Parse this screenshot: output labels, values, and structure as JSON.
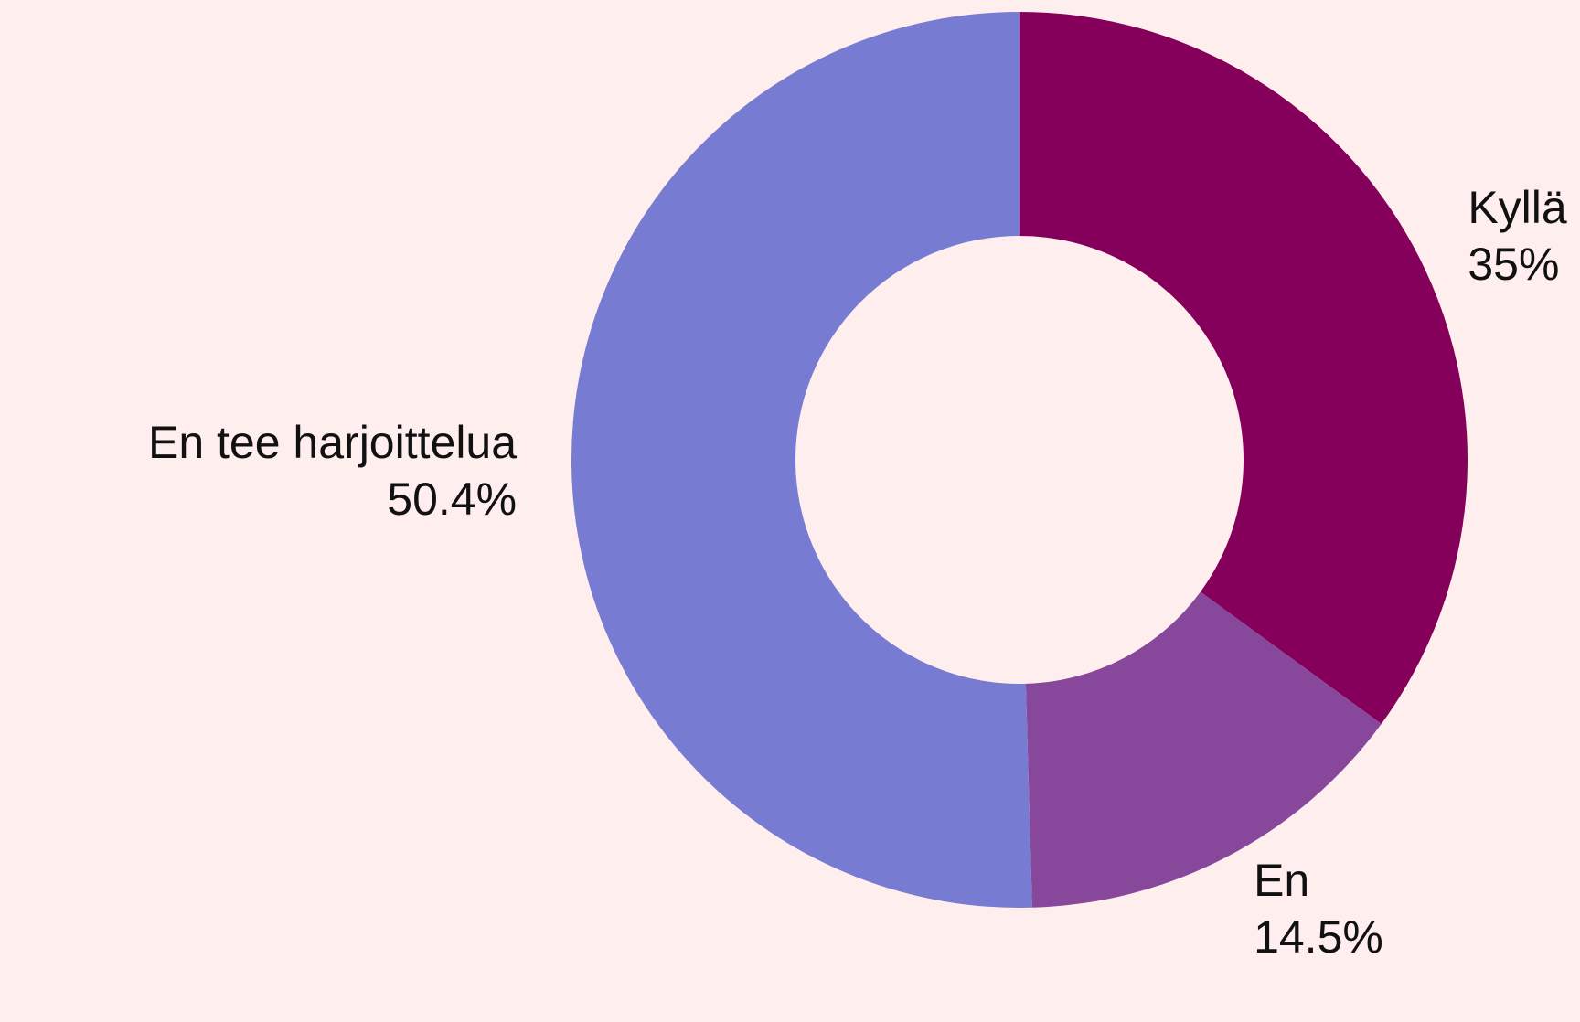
{
  "chart_data": {
    "type": "pie",
    "categories": [
      "Kyllä",
      "En",
      "En tee harjoittelua"
    ],
    "values": [
      35,
      14.5,
      50.4
    ],
    "value_labels": [
      "35%",
      "14.5%",
      "50.4%"
    ],
    "colors": [
      "#85005a",
      "#87489c",
      "#777cd2"
    ],
    "hole": true
  }
}
